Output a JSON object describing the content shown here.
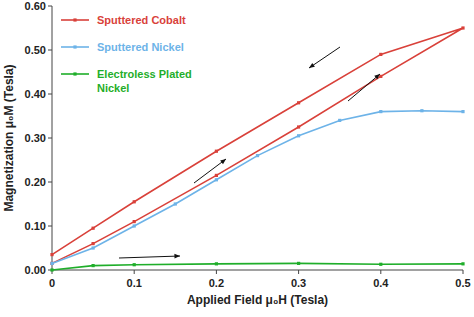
{
  "chart_data": {
    "type": "line",
    "x_label": "Applied Field μ₀H (Tesla)",
    "y_label": "Magnetization μ₀M (Tesla)",
    "xlim": [
      0,
      0.5
    ],
    "xticks": [
      0,
      0.1,
      0.2,
      0.3,
      0.4,
      0.5
    ],
    "ylim": [
      0,
      0.6
    ],
    "yticks": [
      {
        "value": 0,
        "label": "0.00"
      },
      {
        "value": 0.1,
        "label": "0.10"
      },
      {
        "value": 0.2,
        "label": "0.20"
      },
      {
        "value": 0.3,
        "label": "0.30"
      },
      {
        "value": 0.4,
        "label": "0.40"
      },
      {
        "value": 0.5,
        "label": "0.50"
      },
      {
        "value": 0.6,
        "label": "0.60"
      }
    ],
    "grid": false,
    "legend": "top-left",
    "series": [
      {
        "name": "Sputtered Cobalt",
        "color": "#d9413a",
        "marker": "square",
        "x": [
          0,
          0.05,
          0.1,
          0.2,
          0.3,
          0.4,
          0.5,
          0.4,
          0.3,
          0.2,
          0.1,
          0.05,
          0
        ],
        "values": [
          0.015,
          0.06,
          0.11,
          0.215,
          0.325,
          0.44,
          0.55,
          0.49,
          0.38,
          0.27,
          0.155,
          0.095,
          0.035
        ]
      },
      {
        "name": "Sputtered Nickel",
        "color": "#6db3e8",
        "marker": "square",
        "x": [
          0,
          0.05,
          0.1,
          0.15,
          0.2,
          0.25,
          0.3,
          0.35,
          0.4,
          0.45,
          0.5
        ],
        "values": [
          0.015,
          0.05,
          0.1,
          0.15,
          0.205,
          0.26,
          0.305,
          0.34,
          0.36,
          0.362,
          0.36
        ]
      },
      {
        "name": "Electroless Plated Nickel",
        "color": "#1fae2a",
        "marker": "square",
        "x": [
          0,
          0.05,
          0.1,
          0.2,
          0.3,
          0.4,
          0.5
        ],
        "values": [
          0.0,
          0.01,
          0.012,
          0.014,
          0.015,
          0.013,
          0.014
        ]
      }
    ]
  }
}
